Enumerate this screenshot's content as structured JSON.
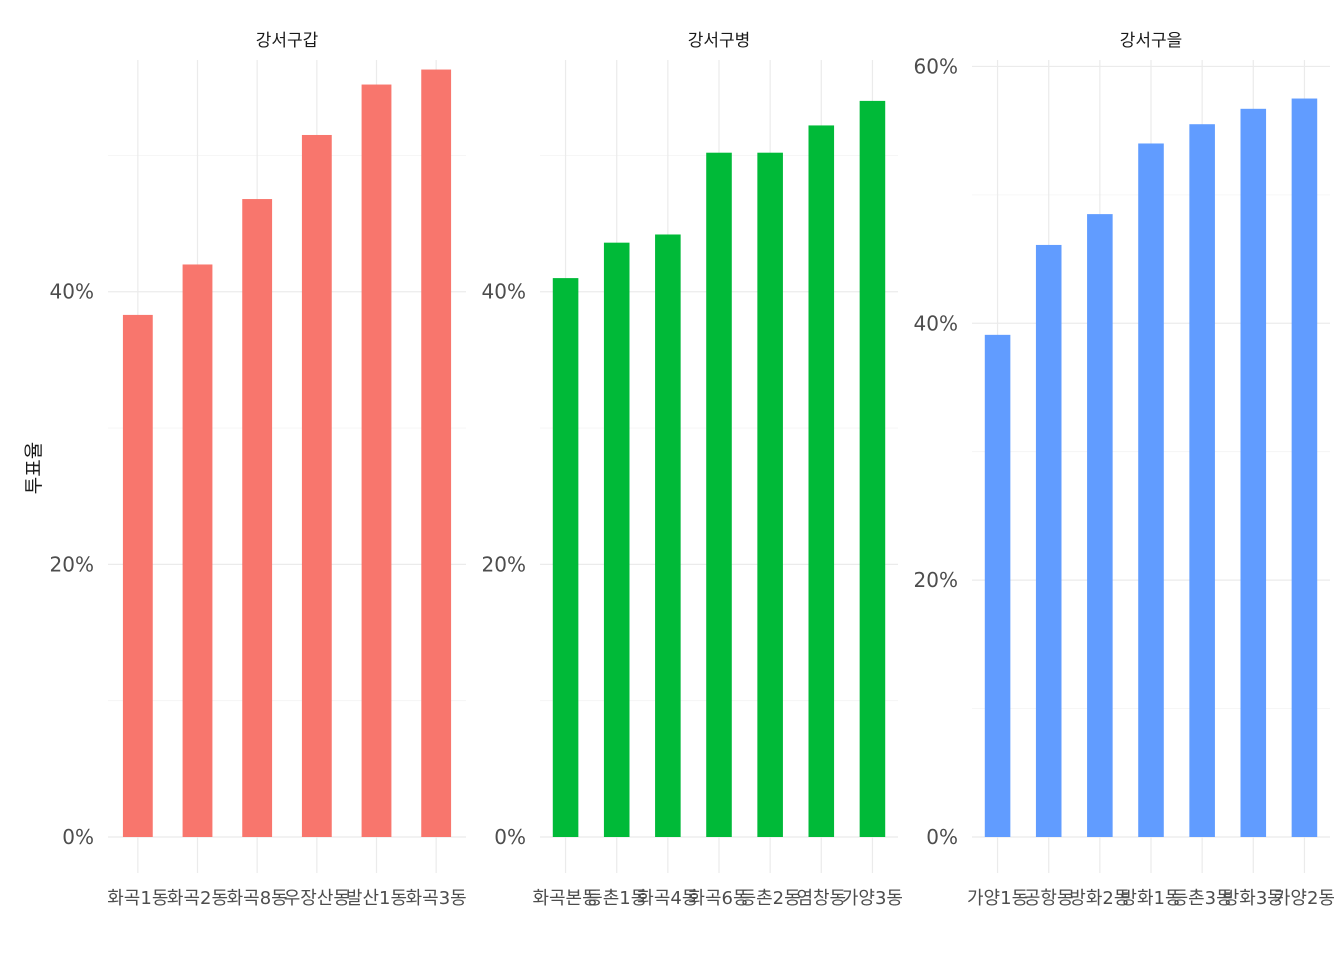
{
  "chart_data": {
    "type": "bar",
    "facet": "columns",
    "ylabel": "투표율",
    "xlabel": "",
    "grid": true,
    "panels": [
      {
        "title": "강서구갑",
        "color": "#F8766D",
        "ylim": [
          0,
          0.57
        ],
        "yticks": [
          0,
          0.2,
          0.4
        ],
        "tick_labels": [
          "0%",
          "20%",
          "40%"
        ],
        "categories": [
          "화곡1동",
          "화곡2동",
          "화곡8동",
          "우장산동",
          "발산1동",
          "화곡3동"
        ],
        "values": [
          0.383,
          0.42,
          0.468,
          0.515,
          0.552,
          0.563
        ]
      },
      {
        "title": "강서구병",
        "color": "#00BA38",
        "ylim": [
          0,
          0.57
        ],
        "yticks": [
          0,
          0.2,
          0.4
        ],
        "tick_labels": [
          "0%",
          "20%",
          "40%"
        ],
        "categories": [
          "화곡본동",
          "등촌1동",
          "화곡4동",
          "화곡6동",
          "등촌2동",
          "염창동",
          "가양3동"
        ],
        "values": [
          0.41,
          0.436,
          0.442,
          0.502,
          0.502,
          0.522,
          0.54
        ]
      },
      {
        "title": "강서구을",
        "color": "#619CFF",
        "ylim": [
          0,
          0.605
        ],
        "yticks": [
          0,
          0.2,
          0.4,
          0.6
        ],
        "tick_labels": [
          "0%",
          "20%",
          "40%",
          "60%"
        ],
        "categories": [
          "가양1동",
          "공항동",
          "방화2동",
          "방화1동",
          "등촌3동",
          "방화3동",
          "가양2동"
        ],
        "values": [
          0.391,
          0.461,
          0.485,
          0.54,
          0.555,
          0.567,
          0.575
        ]
      }
    ]
  }
}
